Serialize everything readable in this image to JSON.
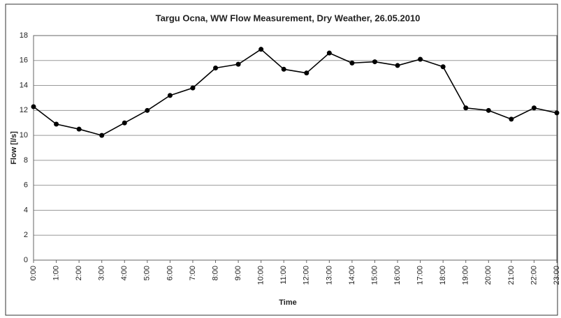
{
  "chart_data": {
    "type": "line",
    "title": "Targu Ocna, WW Flow Measurement, Dry Weather, 26.05.2010",
    "x_label": "Time",
    "y_label": "Flow [l/s]",
    "categories": [
      "0:00",
      "1:00",
      "2:00",
      "3:00",
      "4:00",
      "5:00",
      "6:00",
      "7:00",
      "8:00",
      "9:00",
      "10:00",
      "11:00",
      "12:00",
      "13:00",
      "14:00",
      "15:00",
      "16:00",
      "17:00",
      "18:00",
      "19:00",
      "20:00",
      "21:00",
      "22:00",
      "23:00"
    ],
    "series": [
      {
        "name": "Flow",
        "color": "#000000",
        "values": [
          12.3,
          10.9,
          10.5,
          10.0,
          11.0,
          12.0,
          13.2,
          13.8,
          15.4,
          15.7,
          16.9,
          15.3,
          15.0,
          16.6,
          15.8,
          15.9,
          15.6,
          16.1,
          15.5,
          12.2,
          12.0,
          11.3,
          12.2,
          11.8
        ]
      }
    ],
    "ylim": [
      0,
      18
    ],
    "yticks": [
      0,
      2,
      4,
      6,
      8,
      10,
      12,
      14,
      16,
      18
    ],
    "grid": true
  }
}
